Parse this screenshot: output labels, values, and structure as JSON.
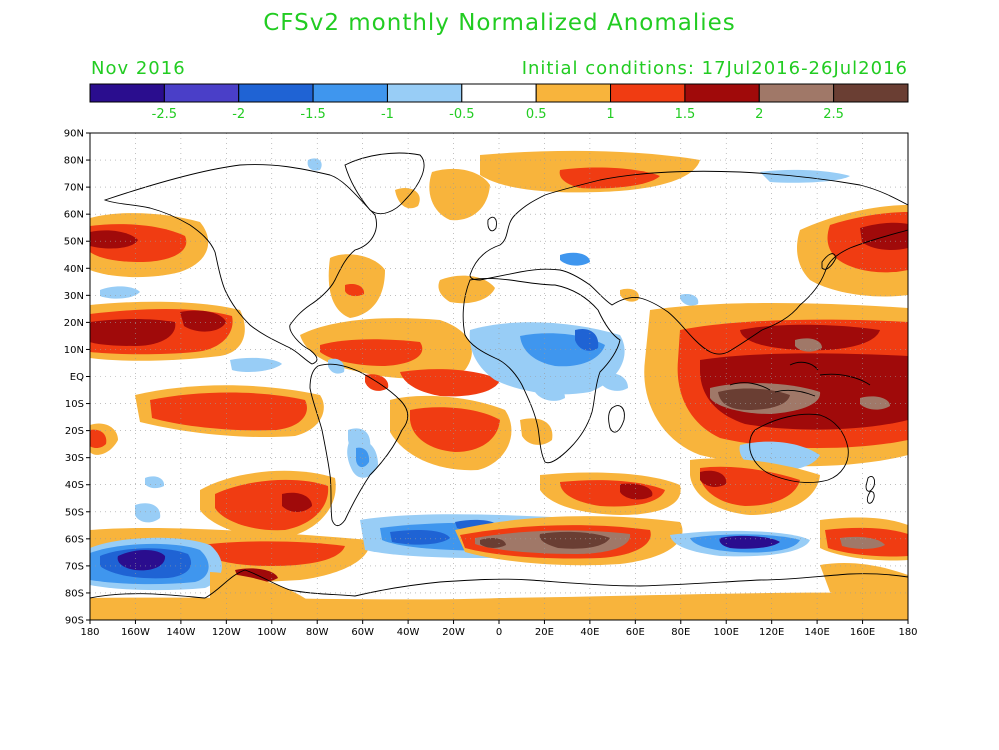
{
  "title": "CFSv2 monthly Normalized Anomalies",
  "month_label": "Nov 2016",
  "init_label": "Initial conditions: 17Jul2016-26Jul2016",
  "text_color": "#22cc22",
  "colorbar": {
    "colors": [
      "#2a0d8e",
      "#4a3fc8",
      "#1f63d4",
      "#3f96ee",
      "#98cdf6",
      "#ffffff",
      "#f8b43c",
      "#f03c12",
      "#a00a0a",
      "#a07868",
      "#6a3e33"
    ],
    "labels": [
      "-2.5",
      "-2",
      "-1.5",
      "-1",
      "-0.5",
      "0.5",
      "1",
      "1.5",
      "2",
      "2.5"
    ]
  },
  "map": {
    "lat_labels": [
      "90N",
      "80N",
      "70N",
      "60N",
      "50N",
      "40N",
      "30N",
      "20N",
      "10N",
      "EQ",
      "10S",
      "20S",
      "30S",
      "40S",
      "50S",
      "60S",
      "70S",
      "80S",
      "90S"
    ],
    "lon_labels": [
      "180",
      "160W",
      "140W",
      "120W",
      "100W",
      "80W",
      "60W",
      "40W",
      "20W",
      "0",
      "20E",
      "40E",
      "60E",
      "80E",
      "100E",
      "120E",
      "140E",
      "160E",
      "180"
    ]
  }
}
